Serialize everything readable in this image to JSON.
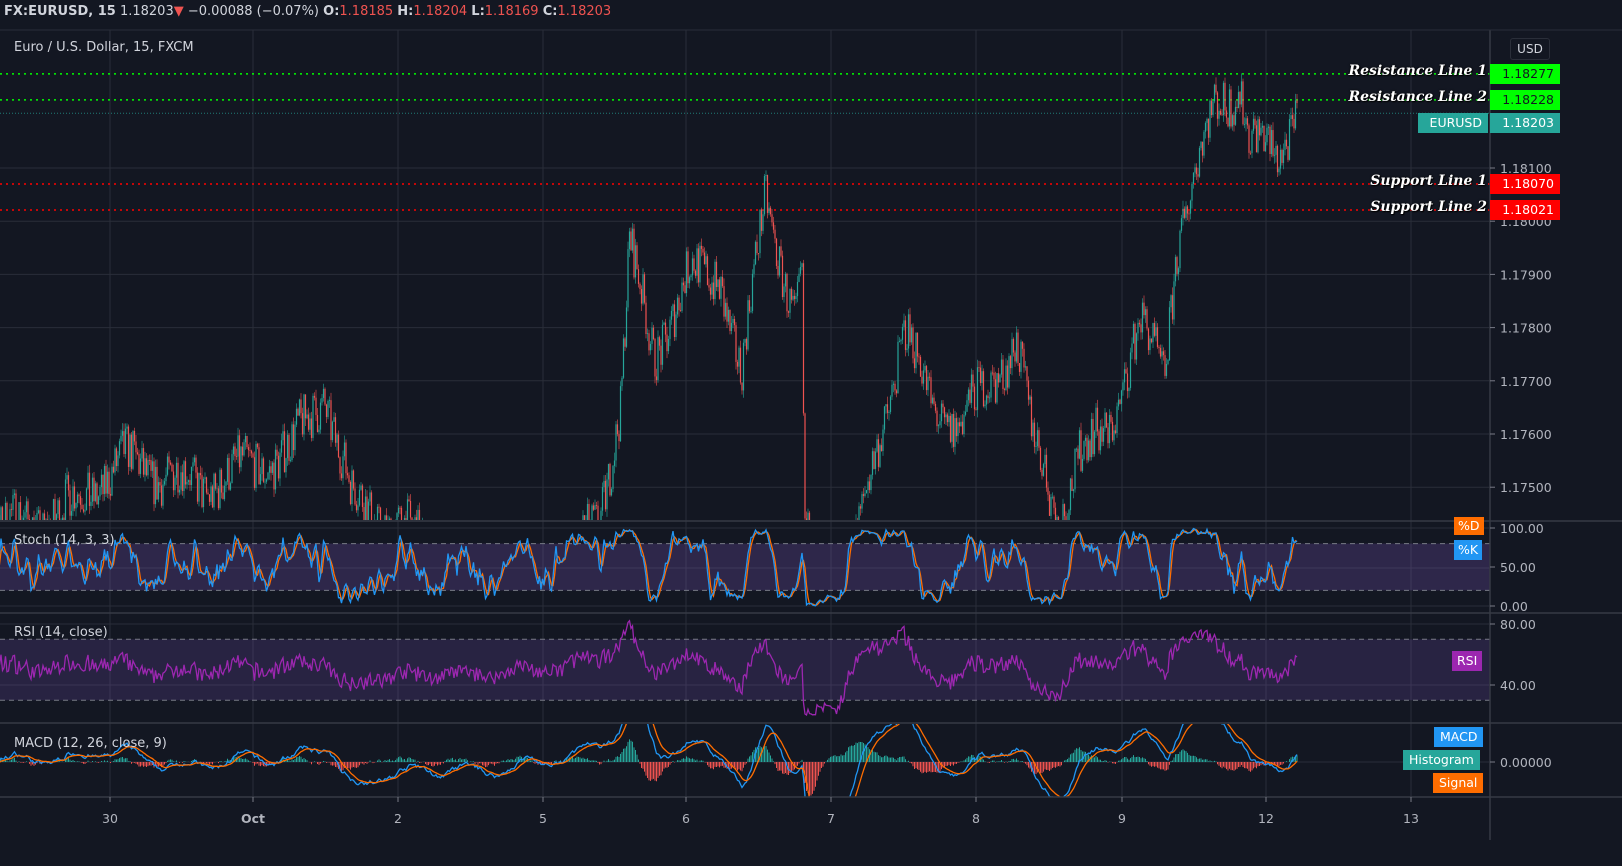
{
  "header": {
    "symbol": "FX:EURUSD, 15",
    "last": "1.18203",
    "change_icon": "triangle-down-icon",
    "change": "−0.00088 (−0.07%)",
    "o_label": "O:",
    "o": "1.18185",
    "h_label": "H:",
    "h": "1.18204",
    "l_label": "L:",
    "l": "1.18169",
    "c_label": "C:",
    "c": "1.18203"
  },
  "main_legend": "Euro / U.S. Dollar, 15, FXCM",
  "currency_button": "USD",
  "colors": {
    "background": "#131722",
    "grid": "#2a2e39",
    "up": "#26a69a",
    "down": "#ef5350",
    "resistance": "#00ff00",
    "support": "#ff0000",
    "stoch_k": "#2196f3",
    "stoch_d": "#ff6d00",
    "rsi": "#9c27b0",
    "macd": "#2196f3",
    "signal": "#ff6d00",
    "histogram": "#26a69a"
  },
  "lines": [
    {
      "name": "Resistance Line 1",
      "value": "1.18277",
      "kind": "resistance"
    },
    {
      "name": "Resistance Line 2",
      "value": "1.18228",
      "kind": "resistance"
    },
    {
      "name": "Support Line 1",
      "value": "1.18070",
      "kind": "support"
    },
    {
      "name": "Support Line 2",
      "value": "1.18021",
      "kind": "support"
    }
  ],
  "last_price_tag": {
    "symbol": "EURUSD",
    "value": "1.18203"
  },
  "indicators": {
    "stoch": {
      "title": "Stoch (14, 3, 3)",
      "ticks": [
        "100.00",
        "50.00",
        "0.00"
      ],
      "tag_d": "%D",
      "tag_k": "%K",
      "bands": [
        20,
        80
      ]
    },
    "rsi": {
      "title": "RSI (14, close)",
      "ticks": [
        "80.00",
        "40.00"
      ],
      "tag": "RSI",
      "bands": [
        30,
        70
      ]
    },
    "macd": {
      "title": "MACD (12, 26, close, 9)",
      "ticks": [
        "0.00000"
      ],
      "tag_macd": "MACD",
      "tag_hist": "Histogram",
      "tag_signal": "Signal"
    }
  },
  "chart_data": {
    "type": "candlestick",
    "title": "Euro / U.S. Dollar, 15, FXCM",
    "interval": "15",
    "y_ticks": [
      "1.18100",
      "1.18000",
      "1.17900",
      "1.17800",
      "1.17700",
      "1.17600",
      "1.17500"
    ],
    "ylim": [
      1.17438,
      1.183
    ],
    "x_ticks": [
      "30",
      "Oct",
      "2",
      "5",
      "6",
      "7",
      "8",
      "9",
      "12",
      "13"
    ],
    "trading_days": [
      "2020-09-29",
      "2020-09-30",
      "2020-10-01",
      "2020-10-02",
      "2020-10-05",
      "2020-10-06",
      "2020-10-07",
      "2020-10-08",
      "2020-10-09",
      "2020-10-12",
      "2020-10-13"
    ],
    "grid": true,
    "approx_close_path": [
      [
        "2020-09-29 00:00",
        1.1742
      ],
      [
        "2020-09-29 06:00",
        1.1742
      ],
      [
        "2020-09-29 16:00",
        1.1745
      ],
      [
        "2020-09-30 02:30",
        1.1755
      ],
      [
        "2020-09-30 15:00",
        1.175
      ],
      [
        "2020-10-01 06:00",
        1.1757
      ],
      [
        "2020-10-01 11:30",
        1.1768
      ],
      [
        "2020-10-01 16:00",
        1.1748
      ],
      [
        "2020-10-02 00:00",
        1.1742
      ],
      [
        "2020-10-02 16:30",
        1.173
      ],
      [
        "2020-10-05 02:30",
        1.1732
      ],
      [
        "2020-10-05 09:00",
        1.1745
      ],
      [
        "2020-10-05 12:30",
        1.1765
      ],
      [
        "2020-10-05 14:00",
        1.1795
      ],
      [
        "2020-10-05 18:00",
        1.1775
      ],
      [
        "2020-10-06 00:00",
        1.179
      ],
      [
        "2020-10-06 05:00",
        1.179
      ],
      [
        "2020-10-06 08:30",
        1.177
      ],
      [
        "2020-10-06 12:30",
        1.1806
      ],
      [
        "2020-10-06 17:30",
        1.178
      ],
      [
        "2020-10-06 18:30",
        1.179
      ],
      [
        "2020-10-06 19:00",
        1.174
      ],
      [
        "2020-10-07 01:00",
        1.1725
      ],
      [
        "2020-10-07 06:30",
        1.1755
      ],
      [
        "2020-10-07 11:30",
        1.178
      ],
      [
        "2020-10-07 16:00",
        1.1765
      ],
      [
        "2020-10-07 20:30",
        1.1762
      ],
      [
        "2020-10-08 01:00",
        1.1768
      ],
      [
        "2020-10-08 06:00",
        1.1778
      ],
      [
        "2020-10-08 08:30",
        1.176
      ],
      [
        "2020-10-08 13:00",
        1.1745
      ],
      [
        "2020-10-08 16:30",
        1.1755
      ],
      [
        "2020-10-08 21:30",
        1.1762
      ],
      [
        "2020-10-09 02:30",
        1.178
      ],
      [
        "2020-10-09 06:30",
        1.1772
      ],
      [
        "2020-10-09 08:30",
        1.1795
      ],
      [
        "2020-10-09 12:30",
        1.1812
      ],
      [
        "2020-10-09 15:00",
        1.1823
      ],
      [
        "2020-10-09 19:00",
        1.1825
      ],
      [
        "2020-10-09 20:30",
        1.1815
      ],
      [
        "2020-10-12 01:00",
        1.1813
      ],
      [
        "2020-10-12 04:30",
        1.18203
      ]
    ]
  }
}
